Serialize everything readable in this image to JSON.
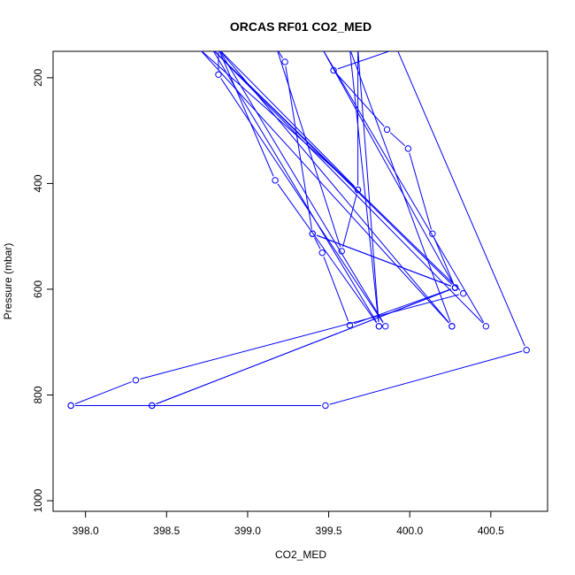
{
  "chart_data": {
    "type": "line",
    "title": "ORCAS RF01 CO2_MED",
    "xlabel": "CO2_MED",
    "ylabel": "Pressure (mbar)",
    "xlim": [
      397.8,
      400.85
    ],
    "ylim": [
      1020,
      150
    ],
    "y_reversed": true,
    "x_ticks": [
      "398.0",
      "398.5",
      "399.0",
      "399.5",
      "400.0",
      "400.5"
    ],
    "y_ticks": [
      "200",
      "400",
      "600",
      "800",
      "1000"
    ],
    "grid": false,
    "series_color": "#0000ff",
    "points": [
      {
        "x": 398.82,
        "y": 145,
        "marker": false
      },
      {
        "x": 399.68,
        "y": 412,
        "marker": true
      },
      {
        "x": 399.58,
        "y": 528,
        "marker": true
      },
      {
        "x": 399.18,
        "y": 145,
        "marker": false
      },
      {
        "x": 399.23,
        "y": 170,
        "marker": true
      },
      {
        "x": 399.4,
        "y": 495,
        "marker": true
      },
      {
        "x": 400.28,
        "y": 597,
        "marker": true
      },
      {
        "x": 398.41,
        "y": 820,
        "marker": true
      },
      {
        "x": 397.91,
        "y": 820,
        "marker": true
      },
      {
        "x": 399.48,
        "y": 820,
        "marker": true
      },
      {
        "x": 400.72,
        "y": 715,
        "marker": true
      },
      {
        "x": 399.92,
        "y": 145,
        "marker": false
      },
      {
        "x": 399.53,
        "y": 186,
        "marker": true
      },
      {
        "x": 399.86,
        "y": 298,
        "marker": true
      },
      {
        "x": 399.99,
        "y": 334,
        "marker": true
      },
      {
        "x": 400.14,
        "y": 495,
        "marker": true
      },
      {
        "x": 400.28,
        "y": 597,
        "marker": true
      },
      {
        "x": 399.46,
        "y": 145,
        "marker": false
      },
      {
        "x": 400.47,
        "y": 670,
        "marker": true
      },
      {
        "x": 398.78,
        "y": 145,
        "marker": false
      },
      {
        "x": 400.33,
        "y": 608,
        "marker": true
      },
      {
        "x": 398.31,
        "y": 772,
        "marker": true
      },
      {
        "x": 397.91,
        "y": 820,
        "marker": true
      },
      {
        "x": 398.41,
        "y": 820,
        "marker": true
      },
      {
        "x": 400.28,
        "y": 597,
        "marker": true
      },
      {
        "x": 399.63,
        "y": 668,
        "marker": true
      },
      {
        "x": 399.46,
        "y": 531,
        "marker": true
      },
      {
        "x": 399.4,
        "y": 495,
        "marker": true
      },
      {
        "x": 400.28,
        "y": 597,
        "marker": true
      },
      {
        "x": 398.78,
        "y": 145,
        "marker": false
      },
      {
        "x": 399.81,
        "y": 670,
        "marker": true
      },
      {
        "x": 399.17,
        "y": 394,
        "marker": true
      },
      {
        "x": 398.82,
        "y": 145,
        "marker": false
      },
      {
        "x": 399.85,
        "y": 670,
        "marker": true
      },
      {
        "x": 398.82,
        "y": 194,
        "marker": true
      },
      {
        "x": 398.82,
        "y": 145,
        "marker": false
      },
      {
        "x": 400.26,
        "y": 670,
        "marker": true
      },
      {
        "x": 398.7,
        "y": 145,
        "marker": false
      },
      {
        "x": 399.68,
        "y": 412,
        "marker": true
      },
      {
        "x": 399.68,
        "y": 145,
        "marker": false
      },
      {
        "x": 399.81,
        "y": 670,
        "marker": true
      },
      {
        "x": 399.63,
        "y": 145,
        "marker": false
      },
      {
        "x": 400.26,
        "y": 670,
        "marker": true
      }
    ]
  }
}
